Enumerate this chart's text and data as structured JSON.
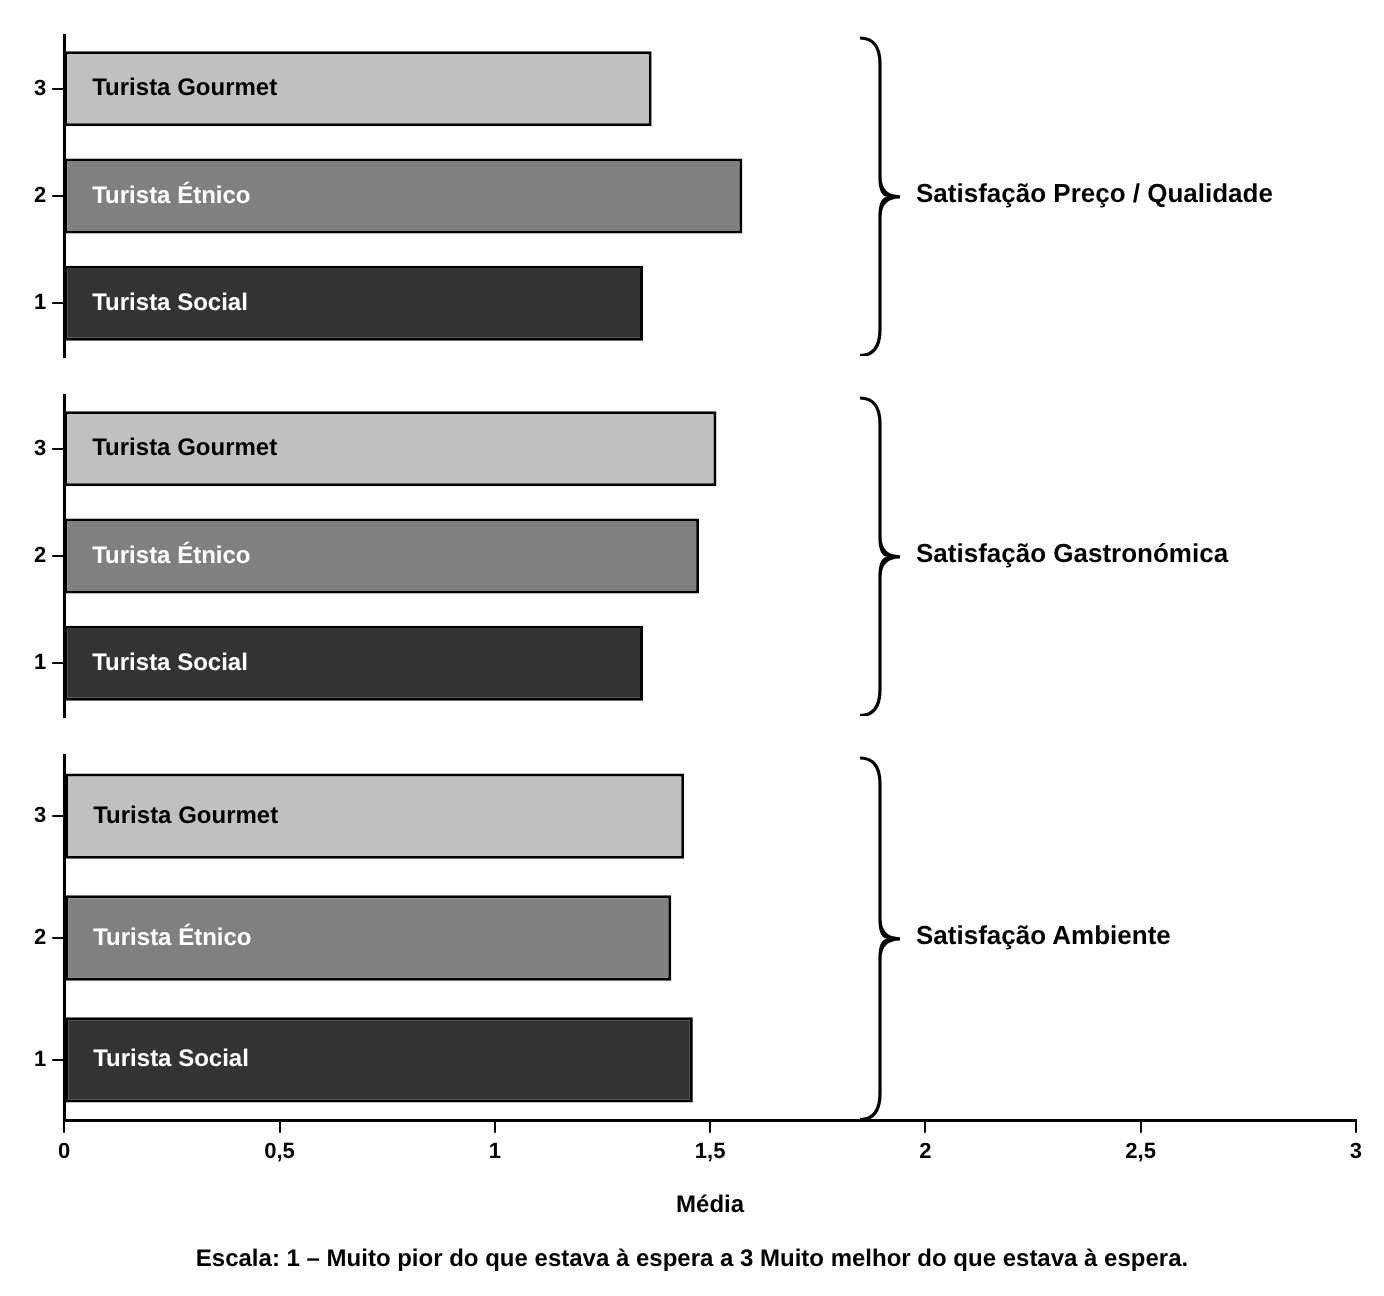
{
  "chart_data": [
    {
      "type": "bar",
      "orientation": "horizontal",
      "title": "Satisfação Preço / Qualidade",
      "categories": [
        "3",
        "2",
        "1"
      ],
      "series": [
        {
          "name": "Turista Gourmet",
          "color": "#c0c0c0",
          "values": [
            1.36,
            null,
            null
          ]
        },
        {
          "name": "Turista Étnico",
          "color": "#808080",
          "values": [
            null,
            1.57,
            null
          ]
        },
        {
          "name": "Turista Social",
          "color": "#333333",
          "values": [
            null,
            null,
            1.34
          ]
        }
      ],
      "xlim": [
        0,
        3
      ],
      "tick_labels": "y",
      "legend": false,
      "grid": false
    },
    {
      "type": "bar",
      "orientation": "horizontal",
      "title": "Satisfação Gastronómica",
      "categories": [
        "3",
        "2",
        "1"
      ],
      "series": [
        {
          "name": "Turista Gourmet",
          "color": "#c0c0c0",
          "values": [
            1.51,
            null,
            null
          ]
        },
        {
          "name": "Turista Étnico",
          "color": "#808080",
          "values": [
            null,
            1.47,
            null
          ]
        },
        {
          "name": "Turista Social",
          "color": "#333333",
          "values": [
            null,
            null,
            1.34
          ]
        }
      ],
      "xlim": [
        0,
        3
      ],
      "tick_labels": "y",
      "legend": false,
      "grid": false
    },
    {
      "type": "bar",
      "orientation": "horizontal",
      "title": "Satisfação Ambiente",
      "xlabel": "Média",
      "categories": [
        "3",
        "2",
        "1"
      ],
      "series": [
        {
          "name": "Turista Gourmet",
          "color": "#c0c0c0",
          "values": [
            1.44,
            null,
            null
          ]
        },
        {
          "name": "Turista Étnico",
          "color": "#808080",
          "values": [
            null,
            1.41,
            null
          ]
        },
        {
          "name": "Turista Social",
          "color": "#333333",
          "values": [
            null,
            null,
            1.46
          ]
        }
      ],
      "xlim": [
        0,
        3
      ],
      "xticks": [
        0,
        {
          "value": 0.5,
          "label": "0,5"
        },
        1,
        {
          "value": 1.5,
          "label": "1,5"
        },
        2,
        {
          "value": 2.5,
          "label": "2,5"
        },
        3
      ],
      "legend": false,
      "grid": false,
      "annotations": [
        "Escala: 1 – Muito pior do que estava à espera a 3 Muito melhor do que estava à espera."
      ]
    }
  ]
}
